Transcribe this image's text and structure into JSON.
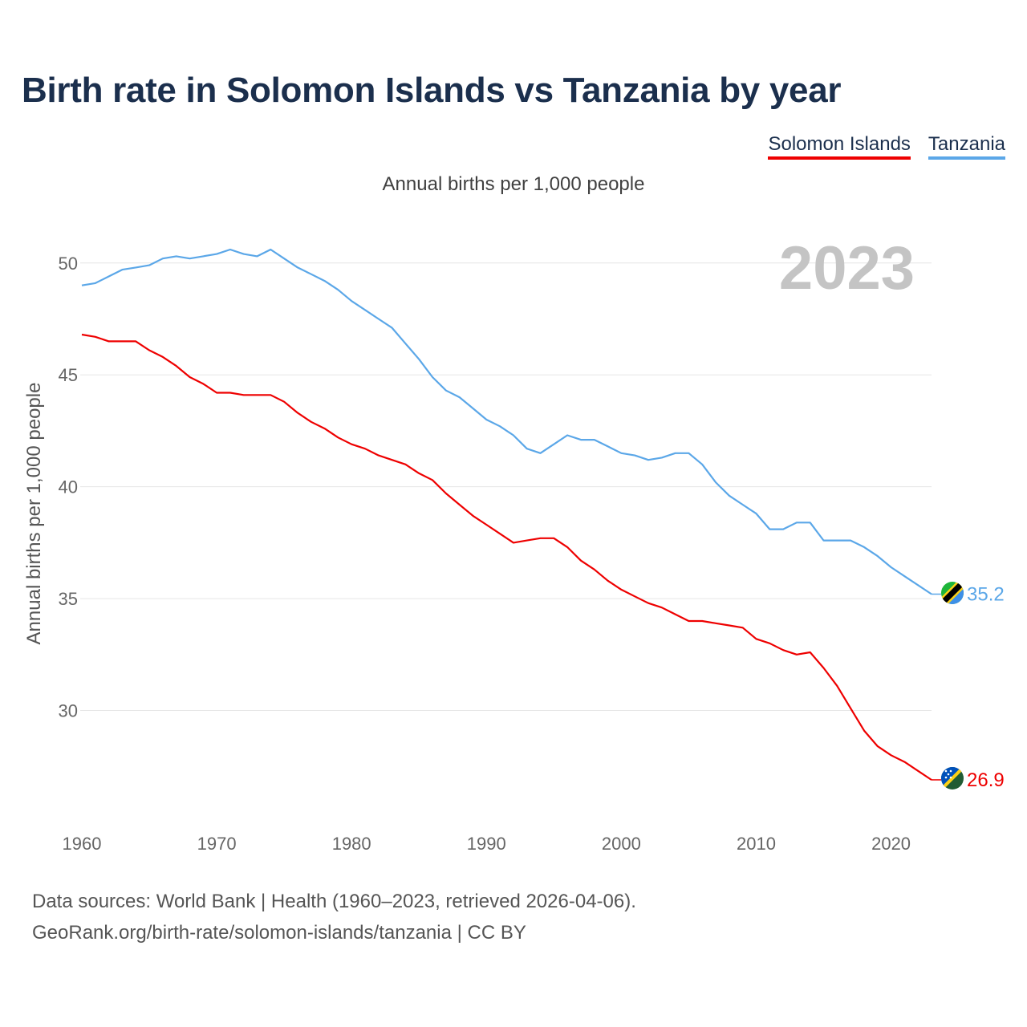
{
  "title": "Birth rate in Solomon Islands vs Tanzania by year",
  "subtitle": "Annual births per 1,000 people",
  "year_watermark": "2023",
  "footer": {
    "line1": "Data sources: World Bank | Health (1960–2023, retrieved 2026-04-06).",
    "line2": "GeoRank.org/birth-rate/solomon-islands/tanzania | CC BY"
  },
  "legend": [
    {
      "name": "Solomon Islands",
      "color": "#ee0000"
    },
    {
      "name": "Tanzania",
      "color": "#5ba7e8"
    }
  ],
  "chart_data": {
    "type": "line",
    "title": "Birth rate in Solomon Islands vs Tanzania by year",
    "xlabel": "",
    "ylabel": "Annual births per 1,000 people",
    "xlim": [
      1960,
      2023
    ],
    "ylim": [
      25.5,
      52
    ],
    "x_ticks": [
      1960,
      1970,
      1980,
      1990,
      2000,
      2010,
      2020
    ],
    "y_ticks": [
      30,
      35,
      40,
      45,
      50
    ],
    "grid": true,
    "x": [
      1960,
      1961,
      1962,
      1963,
      1964,
      1965,
      1966,
      1967,
      1968,
      1969,
      1970,
      1971,
      1972,
      1973,
      1974,
      1975,
      1976,
      1977,
      1978,
      1979,
      1980,
      1981,
      1982,
      1983,
      1984,
      1985,
      1986,
      1987,
      1988,
      1989,
      1990,
      1991,
      1992,
      1993,
      1994,
      1995,
      1996,
      1997,
      1998,
      1999,
      2000,
      2001,
      2002,
      2003,
      2004,
      2005,
      2006,
      2007,
      2008,
      2009,
      2010,
      2011,
      2012,
      2013,
      2014,
      2015,
      2016,
      2017,
      2018,
      2019,
      2020,
      2021,
      2022,
      2023
    ],
    "series": [
      {
        "name": "Solomon Islands",
        "color": "#ee0000",
        "end_label": "26.9",
        "values": [
          46.8,
          46.7,
          46.5,
          46.5,
          46.5,
          46.1,
          45.8,
          45.4,
          44.9,
          44.6,
          44.2,
          44.2,
          44.1,
          44.1,
          44.1,
          43.8,
          43.3,
          42.9,
          42.6,
          42.2,
          41.9,
          41.7,
          41.4,
          41.2,
          41.0,
          40.6,
          40.3,
          39.7,
          39.2,
          38.7,
          38.3,
          37.9,
          37.5,
          37.6,
          37.7,
          37.7,
          37.3,
          36.7,
          36.3,
          35.8,
          35.4,
          35.1,
          34.8,
          34.6,
          34.3,
          34.0,
          34.0,
          33.9,
          33.8,
          33.7,
          33.2,
          33.0,
          32.7,
          32.5,
          32.6,
          31.9,
          31.1,
          30.1,
          29.1,
          28.4,
          28.0,
          27.7,
          27.3,
          26.9
        ]
      },
      {
        "name": "Tanzania",
        "color": "#5ba7e8",
        "end_label": "35.2",
        "values": [
          49.0,
          49.1,
          49.4,
          49.7,
          49.8,
          49.9,
          50.2,
          50.3,
          50.2,
          50.3,
          50.4,
          50.6,
          50.4,
          50.3,
          50.6,
          50.2,
          49.8,
          49.5,
          49.2,
          48.8,
          48.3,
          47.9,
          47.5,
          47.1,
          46.4,
          45.7,
          44.9,
          44.3,
          44.0,
          43.5,
          43.0,
          42.7,
          42.3,
          41.7,
          41.5,
          41.9,
          42.3,
          42.1,
          42.1,
          41.8,
          41.5,
          41.4,
          41.2,
          41.3,
          41.5,
          41.5,
          41.0,
          40.2,
          39.6,
          39.2,
          38.8,
          38.1,
          38.1,
          38.4,
          38.4,
          37.6,
          37.6,
          37.6,
          37.3,
          36.9,
          36.4,
          36.0,
          35.6,
          35.2
        ]
      }
    ]
  }
}
